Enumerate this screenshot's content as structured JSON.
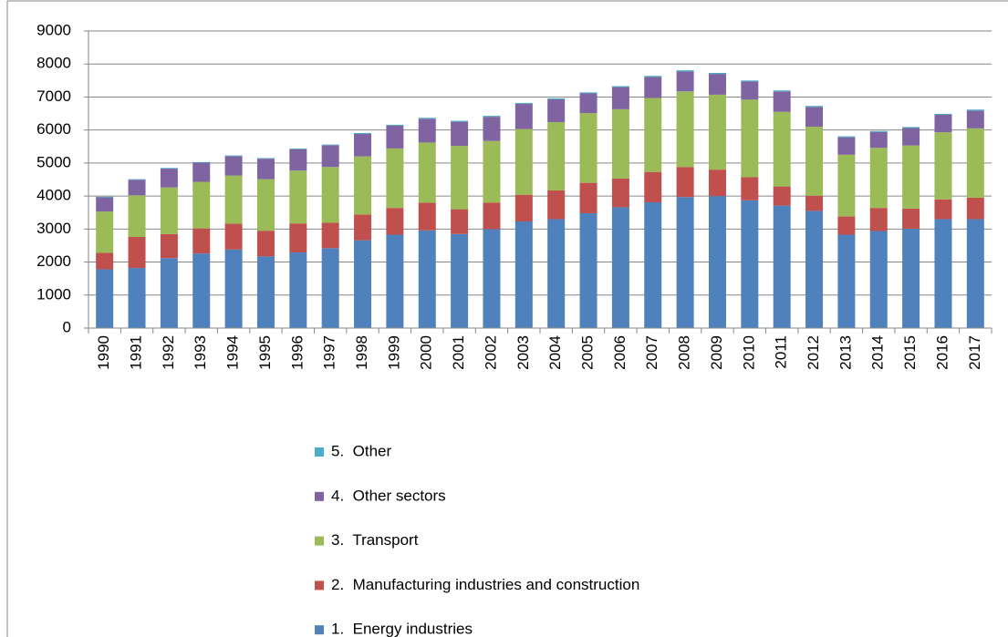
{
  "chart_data": {
    "type": "stacked_bar",
    "categories": [
      "1990",
      "1991",
      "1992",
      "1993",
      "1994",
      "1995",
      "1996",
      "1997",
      "1998",
      "1999",
      "2000",
      "2001",
      "2002",
      "2003",
      "2004",
      "2005",
      "2006",
      "2007",
      "2008",
      "2009",
      "2010",
      "2011",
      "2012",
      "2013",
      "2014",
      "2015",
      "2016",
      "2017"
    ],
    "series": [
      {
        "name": "1.  Energy industries",
        "color": "#4f81bd",
        "values": [
          1780,
          1820,
          2120,
          2260,
          2380,
          2170,
          2290,
          2420,
          2660,
          2830,
          2960,
          2850,
          3000,
          3230,
          3300,
          3480,
          3660,
          3810,
          3970,
          4000,
          3870,
          3710,
          3550,
          2830,
          2940,
          3010,
          3300,
          3300
        ]
      },
      {
        "name": "2.  Manufacturing industries and construction",
        "color": "#c0504d",
        "values": [
          500,
          940,
          730,
          760,
          780,
          780,
          880,
          770,
          780,
          810,
          840,
          750,
          800,
          810,
          870,
          920,
          870,
          920,
          910,
          800,
          700,
          580,
          460,
          550,
          700,
          610,
          600,
          650
        ]
      },
      {
        "name": "3.  Transport",
        "color": "#9bbb59",
        "values": [
          1250,
          1260,
          1410,
          1410,
          1460,
          1560,
          1600,
          1690,
          1760,
          1800,
          1820,
          1920,
          1870,
          1990,
          2070,
          2110,
          2100,
          2240,
          2290,
          2270,
          2350,
          2260,
          2090,
          1870,
          1820,
          1910,
          2030,
          2100
        ]
      },
      {
        "name": "4.  Other sectors",
        "color": "#8064a2",
        "values": [
          430,
          470,
          570,
          580,
          590,
          620,
          650,
          660,
          680,
          690,
          720,
          730,
          730,
          760,
          690,
          600,
          670,
          640,
          600,
          630,
          550,
          620,
          600,
          530,
          480,
          530,
          530,
          540
        ]
      },
      {
        "name": "5.  Other",
        "color": "#4bacc6",
        "values": [
          20,
          20,
          20,
          20,
          20,
          20,
          20,
          20,
          30,
          30,
          30,
          30,
          30,
          30,
          30,
          30,
          30,
          30,
          40,
          30,
          30,
          30,
          30,
          30,
          30,
          30,
          30,
          30
        ]
      }
    ],
    "ylim": [
      0,
      9000
    ],
    "yticks": [
      0,
      1000,
      2000,
      3000,
      4000,
      5000,
      6000,
      7000,
      8000,
      9000
    ],
    "grid": true
  }
}
